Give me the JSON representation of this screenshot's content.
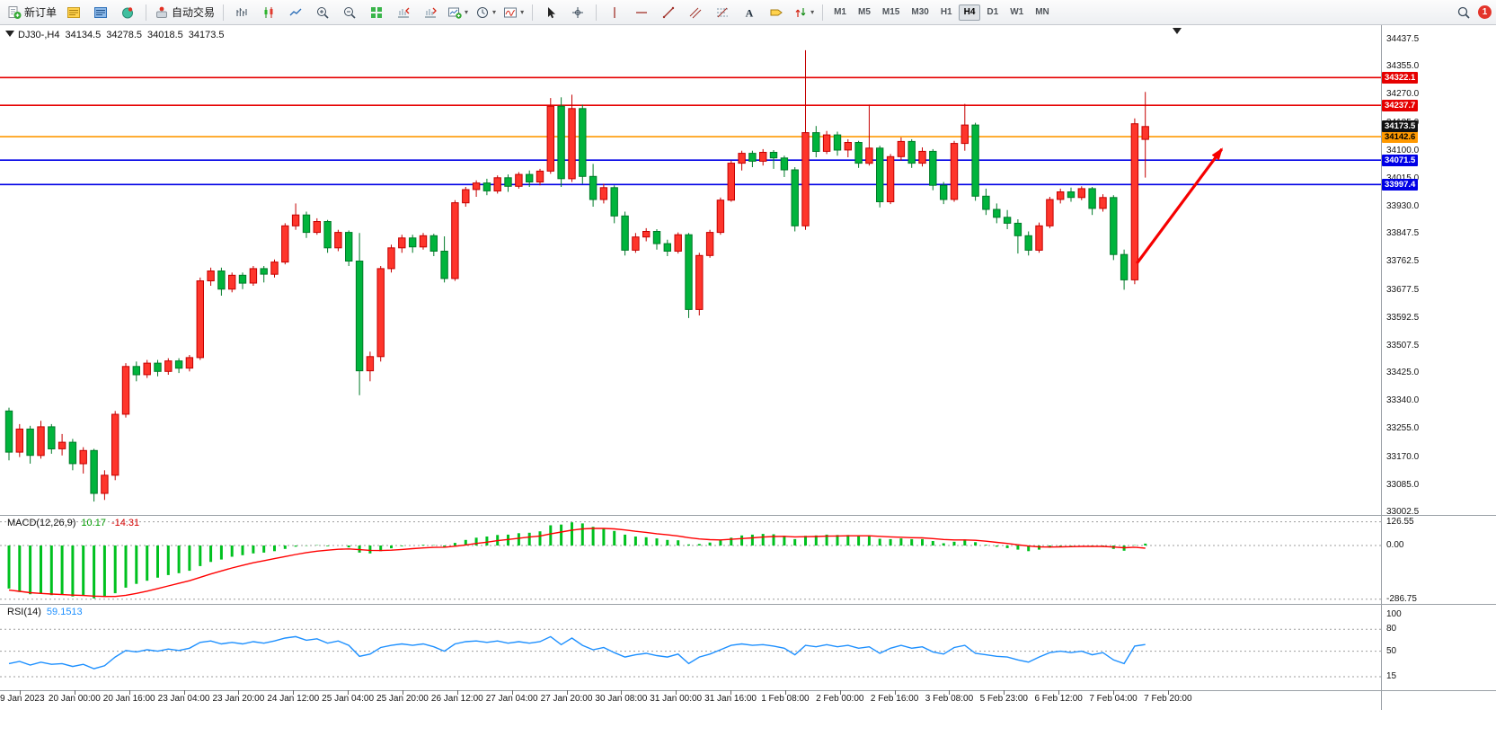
{
  "toolbar": {
    "new_order_label": "新订单",
    "algo_trading_label": "自动交易",
    "timeframes": [
      "M1",
      "M5",
      "M15",
      "M30",
      "H1",
      "H4",
      "D1",
      "W1",
      "MN"
    ],
    "active_timeframe": "H4",
    "notification_count": "1"
  },
  "chart_header": {
    "symbol_period": "DJ30-,H4",
    "open": "34134.5",
    "high": "34278.5",
    "low": "34018.5",
    "close": "34173.5"
  },
  "price_axis": {
    "labels": [
      "34437.5",
      "34355.0",
      "34270.0",
      "34185.0",
      "34100.0",
      "34015.0",
      "33930.0",
      "33847.5",
      "33762.5",
      "33677.5",
      "33592.5",
      "33507.5",
      "33425.0",
      "33340.0",
      "33255.0",
      "33170.0",
      "33085.0",
      "33002.5"
    ]
  },
  "chart_data": [
    {
      "type": "candlestick",
      "name": "DJ30-,H4",
      "ylim": [
        33002.5,
        34437.5
      ],
      "bull_color": "#fe352b",
      "bull_stroke": "#c40000",
      "bear_color": "#00b43c",
      "bear_stroke": "#007a28",
      "x_labels": [
        "19 Jan 2023",
        "20 Jan 00:00",
        "20 Jan 16:00",
        "23 Jan 04:00",
        "23 Jan 20:00",
        "24 Jan 12:00",
        "25 Jan 04:00",
        "25 Jan 20:00",
        "26 Jan 12:00",
        "27 Jan 04:00",
        "27 Jan 20:00",
        "30 Jan 08:00",
        "31 Jan 00:00",
        "31 Jan 16:00",
        "1 Feb 08:00",
        "2 Feb 00:00",
        "2 Feb 16:00",
        "3 Feb 08:00",
        "5 Feb 23:00",
        "6 Feb 12:00",
        "7 Feb 04:00",
        "7 Feb 20:00"
      ],
      "hlines": [
        {
          "price": 34322.1,
          "label": "34322.1",
          "color": "#e60000",
          "text": "#ffffff"
        },
        {
          "price": 34237.7,
          "label": "34237.7",
          "color": "#e60000",
          "text": "#ffffff"
        },
        {
          "price": 34142.6,
          "label": "34142.6",
          "color": "#ff9900",
          "text": "#000000"
        },
        {
          "price": 34071.5,
          "label": "34071.5",
          "color": "#0000e6",
          "text": "#ffffff"
        },
        {
          "price": 33997.4,
          "label": "33997.4",
          "color": "#0000e6",
          "text": "#ffffff"
        }
      ],
      "current_tag": {
        "price": 34173.5,
        "label": "34173.5",
        "color": "#111111",
        "text": "#ffffff"
      },
      "arrow": {
        "from": {
          "bar": 106.2,
          "price": 33758
        },
        "to": {
          "bar": 114.2,
          "price": 34105
        },
        "color": "#f60000"
      },
      "ohlc": [
        [
          33310,
          33320,
          33160,
          33185
        ],
        [
          33185,
          33270,
          33170,
          33255
        ],
        [
          33255,
          33265,
          33150,
          33175
        ],
        [
          33175,
          33280,
          33165,
          33262
        ],
        [
          33262,
          33270,
          33180,
          33195
        ],
        [
          33195,
          33240,
          33175,
          33215
        ],
        [
          33215,
          33225,
          33130,
          33150
        ],
        [
          33150,
          33200,
          33120,
          33190
        ],
        [
          33190,
          33195,
          33035,
          33060
        ],
        [
          33060,
          33130,
          33040,
          33115
        ],
        [
          33115,
          33310,
          33100,
          33300
        ],
        [
          33300,
          33455,
          33290,
          33445
        ],
        [
          33445,
          33460,
          33400,
          33420
        ],
        [
          33420,
          33465,
          33410,
          33455
        ],
        [
          33455,
          33465,
          33415,
          33430
        ],
        [
          33430,
          33470,
          33420,
          33462
        ],
        [
          33462,
          33470,
          33425,
          33440
        ],
        [
          33440,
          33480,
          33430,
          33472
        ],
        [
          33472,
          33715,
          33465,
          33705
        ],
        [
          33705,
          33745,
          33690,
          33735
        ],
        [
          33735,
          33745,
          33660,
          33680
        ],
        [
          33680,
          33730,
          33670,
          33722
        ],
        [
          33722,
          33730,
          33680,
          33698
        ],
        [
          33698,
          33750,
          33690,
          33742
        ],
        [
          33742,
          33750,
          33700,
          33725
        ],
        [
          33725,
          33770,
          33715,
          33762
        ],
        [
          33762,
          33880,
          33755,
          33872
        ],
        [
          33872,
          33940,
          33860,
          33905
        ],
        [
          33905,
          33915,
          33835,
          33852
        ],
        [
          33852,
          33895,
          33845,
          33885
        ],
        [
          33885,
          33890,
          33790,
          33805
        ],
        [
          33805,
          33860,
          33795,
          33852
        ],
        [
          33852,
          33858,
          33750,
          33765
        ],
        [
          33765,
          33850,
          33358,
          33432
        ],
        [
          33432,
          33490,
          33400,
          33475
        ],
        [
          33475,
          33750,
          33460,
          33742
        ],
        [
          33742,
          33815,
          33730,
          33805
        ],
        [
          33805,
          33845,
          33790,
          33835
        ],
        [
          33835,
          33845,
          33790,
          33808
        ],
        [
          33808,
          33850,
          33800,
          33842
        ],
        [
          33842,
          33848,
          33780,
          33795
        ],
        [
          33795,
          33840,
          33700,
          33712
        ],
        [
          33712,
          33950,
          33705,
          33942
        ],
        [
          33942,
          33990,
          33930,
          33982
        ],
        [
          33982,
          34010,
          33960,
          34002
        ],
        [
          34002,
          34015,
          33965,
          33978
        ],
        [
          33978,
          34025,
          33970,
          34018
        ],
        [
          34018,
          34028,
          33975,
          33992
        ],
        [
          33992,
          34035,
          33985,
          34028
        ],
        [
          34028,
          34040,
          33990,
          34005
        ],
        [
          34005,
          34045,
          33995,
          34038
        ],
        [
          34038,
          34260,
          34030,
          34235
        ],
        [
          34235,
          34262,
          33990,
          34015
        ],
        [
          34015,
          34270,
          34005,
          34228
        ],
        [
          34228,
          34240,
          34000,
          34022
        ],
        [
          34022,
          34060,
          33930,
          33952
        ],
        [
          33952,
          34000,
          33940,
          33988
        ],
        [
          33988,
          33995,
          33880,
          33902
        ],
        [
          33902,
          33915,
          33782,
          33798
        ],
        [
          33798,
          33850,
          33790,
          33838
        ],
        [
          33838,
          33865,
          33825,
          33855
        ],
        [
          33855,
          33862,
          33800,
          33818
        ],
        [
          33818,
          33830,
          33780,
          33795
        ],
        [
          33795,
          33852,
          33788,
          33845
        ],
        [
          33845,
          33850,
          33592,
          33618
        ],
        [
          33618,
          33790,
          33600,
          33782
        ],
        [
          33782,
          33860,
          33775,
          33852
        ],
        [
          33852,
          33958,
          33845,
          33950
        ],
        [
          33950,
          34070,
          33945,
          34062
        ],
        [
          34062,
          34100,
          34040,
          34092
        ],
        [
          34092,
          34100,
          34050,
          34068
        ],
        [
          34068,
          34105,
          34055,
          34095
        ],
        [
          34095,
          34102,
          34045,
          34078
        ],
        [
          34078,
          34085,
          34020,
          34042
        ],
        [
          34042,
          34050,
          33855,
          33872
        ],
        [
          33872,
          34405,
          33860,
          34155
        ],
        [
          34155,
          34175,
          34080,
          34098
        ],
        [
          34098,
          34160,
          34090,
          34148
        ],
        [
          34148,
          34158,
          34085,
          34102
        ],
        [
          34102,
          34135,
          34080,
          34125
        ],
        [
          34125,
          34130,
          34048,
          34062
        ],
        [
          34062,
          34240,
          34055,
          34108
        ],
        [
          34108,
          34115,
          33928,
          33945
        ],
        [
          33945,
          34090,
          33938,
          34082
        ],
        [
          34082,
          34140,
          34070,
          34128
        ],
        [
          34128,
          34135,
          34048,
          34062
        ],
        [
          34062,
          34110,
          34052,
          34098
        ],
        [
          34098,
          34105,
          33980,
          33995
        ],
        [
          33995,
          34005,
          33938,
          33952
        ],
        [
          33952,
          34130,
          33945,
          34122
        ],
        [
          34122,
          34242,
          34100,
          34178
        ],
        [
          34178,
          34185,
          33948,
          33962
        ],
        [
          33962,
          33985,
          33905,
          33922
        ],
        [
          33922,
          33940,
          33880,
          33898
        ],
        [
          33898,
          33920,
          33862,
          33880
        ],
        [
          33880,
          33892,
          33788,
          33842
        ],
        [
          33842,
          33855,
          33782,
          33798
        ],
        [
          33798,
          33882,
          33790,
          33872
        ],
        [
          33872,
          33960,
          33865,
          33952
        ],
        [
          33952,
          33985,
          33940,
          33975
        ],
        [
          33975,
          33988,
          33945,
          33958
        ],
        [
          33958,
          33992,
          33950,
          33985
        ],
        [
          33985,
          33990,
          33905,
          33925
        ],
        [
          33925,
          33968,
          33915,
          33958
        ],
        [
          33958,
          33965,
          33768,
          33785
        ],
        [
          33785,
          33800,
          33678,
          33708
        ],
        [
          33708,
          34198,
          33695,
          34182
        ],
        [
          34134.5,
          34278.5,
          34018.5,
          34173.5
        ]
      ]
    },
    {
      "type": "bar",
      "name": "MACD(12,26,9)",
      "current": {
        "main": "10.17",
        "signal": "-14.31"
      },
      "levels": [
        126.55,
        0,
        -286.75
      ],
      "level_labels": [
        "126.55",
        "0.00",
        "-286.75"
      ],
      "histogram_color": "#00c11f",
      "signal_color": "#ff0000",
      "main": [
        -230,
        -248,
        -260,
        -255,
        -265,
        -262,
        -272,
        -268,
        -282,
        -275,
        -255,
        -225,
        -205,
        -188,
        -172,
        -158,
        -148,
        -135,
        -110,
        -88,
        -75,
        -60,
        -52,
        -42,
        -38,
        -30,
        -18,
        -6,
        -2,
        2,
        -4,
        0,
        -10,
        -38,
        -42,
        -30,
        -15,
        -4,
        0,
        4,
        2,
        -6,
        14,
        30,
        42,
        48,
        56,
        58,
        66,
        68,
        76,
        108,
        112,
        124,
        118,
        100,
        92,
        78,
        58,
        48,
        44,
        38,
        30,
        28,
        6,
        8,
        16,
        28,
        42,
        54,
        58,
        62,
        60,
        52,
        34,
        52,
        54,
        58,
        56,
        56,
        50,
        52,
        36,
        34,
        38,
        34,
        34,
        24,
        12,
        20,
        32,
        18,
        4,
        -6,
        -14,
        -22,
        -30,
        -22,
        -12,
        -4,
        -2,
        0,
        -6,
        -4,
        -18,
        -28,
        2,
        10.17
      ],
      "signal": [
        -238,
        -245,
        -252,
        -256,
        -259,
        -262,
        -265,
        -267,
        -270,
        -272,
        -272,
        -266,
        -256,
        -244,
        -230,
        -216,
        -202,
        -188,
        -170,
        -152,
        -136,
        -120,
        -106,
        -92,
        -81,
        -70,
        -59,
        -48,
        -38,
        -30,
        -25,
        -20,
        -18,
        -22,
        -26,
        -27,
        -25,
        -21,
        -17,
        -13,
        -10,
        -9,
        -4,
        3,
        11,
        18,
        26,
        32,
        39,
        45,
        51,
        62,
        72,
        82,
        89,
        91,
        91,
        89,
        83,
        76,
        70,
        63,
        57,
        51,
        42,
        35,
        31,
        30,
        33,
        37,
        41,
        45,
        48,
        49,
        46,
        47,
        48,
        50,
        51,
        52,
        52,
        52,
        49,
        46,
        44,
        42,
        41,
        37,
        32,
        30,
        30,
        28,
        23,
        17,
        11,
        4,
        -3,
        -7,
        -8,
        -7,
        -6,
        -5,
        -5,
        -5,
        -8,
        -12,
        -9,
        -14.31
      ]
    },
    {
      "type": "line",
      "name": "RSI(14)",
      "current": "59.1513",
      "levels": [
        80,
        50,
        15
      ],
      "level_labels": [
        "100",
        "80",
        "50",
        "15"
      ],
      "level_label_values": [
        100,
        80,
        50,
        15
      ],
      "line_color": "#1e90ff",
      "values": [
        33,
        36,
        31,
        35,
        32,
        33,
        29,
        32,
        26,
        30,
        42,
        51,
        49,
        52,
        50,
        53,
        51,
        54,
        62,
        64,
        60,
        62,
        60,
        63,
        61,
        64,
        68,
        70,
        65,
        67,
        61,
        64,
        58,
        43,
        46,
        55,
        58,
        60,
        58,
        60,
        56,
        50,
        60,
        63,
        64,
        62,
        64,
        61,
        63,
        61,
        63,
        70,
        59,
        68,
        58,
        52,
        55,
        48,
        42,
        45,
        47,
        44,
        42,
        46,
        33,
        42,
        46,
        52,
        58,
        60,
        58,
        59,
        57,
        54,
        45,
        58,
        56,
        59,
        56,
        58,
        54,
        56,
        47,
        54,
        58,
        54,
        56,
        49,
        46,
        55,
        58,
        47,
        45,
        43,
        42,
        38,
        35,
        42,
        48,
        50,
        48,
        50,
        45,
        48,
        38,
        33,
        57,
        59.15
      ]
    }
  ]
}
